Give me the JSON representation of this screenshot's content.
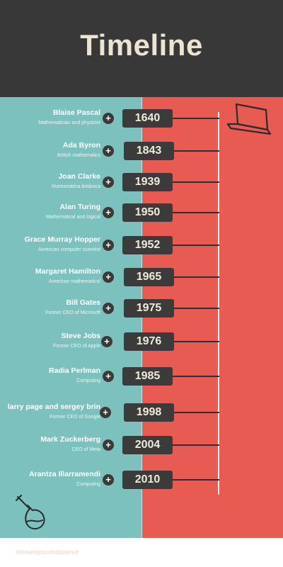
{
  "header": {
    "title": "Timeline"
  },
  "entries": [
    {
      "name": "Blaise Pascal",
      "role": "Mathematician and physicist",
      "year": "1640"
    },
    {
      "name": "Ada Byron",
      "role": "British mathematics",
      "year": "1843"
    },
    {
      "name": "Joan Clarke",
      "role": "Numismática británica",
      "year": "1939"
    },
    {
      "name": "Alan Turing",
      "role": "Mathematical and logical",
      "year": "1950"
    },
    {
      "name": "Grace Murray Hopper",
      "role": "American computer scientist",
      "year": "1952"
    },
    {
      "name": "Margaret Hamilton",
      "role": "American mathematics!",
      "year": "1965"
    },
    {
      "name": "Bill Gates",
      "role": "Former CEO of Microsoft",
      "year": "1975"
    },
    {
      "name": "Steve Jobs",
      "role": "Former CEO of Apple",
      "year": "1976"
    },
    {
      "name": "Radia Perlman",
      "role": "Computing",
      "year": "1985"
    },
    {
      "name": "larry page and sergey brin",
      "role": "Former CEO of Google",
      "year": "1998"
    },
    {
      "name": "Mark Zuckerberg",
      "role": "CEO of Meta",
      "year": "2004"
    },
    {
      "name": "Arantza Illarramendi",
      "role": "Computing",
      "year": "2010"
    }
  ],
  "plus_symbol": "+",
  "footer": {
    "hashtag": "#loremipsumdolorsit"
  },
  "icons": {
    "top": "laptop-icon",
    "bottom": "flask-icon",
    "expand": "plus-icon"
  },
  "colors": {
    "header_bg": "#383838",
    "title": "#ece3d2",
    "left_panel": "#7dc1bf",
    "right_panel": "#e85b52",
    "year_box": "#3b3b3b"
  }
}
